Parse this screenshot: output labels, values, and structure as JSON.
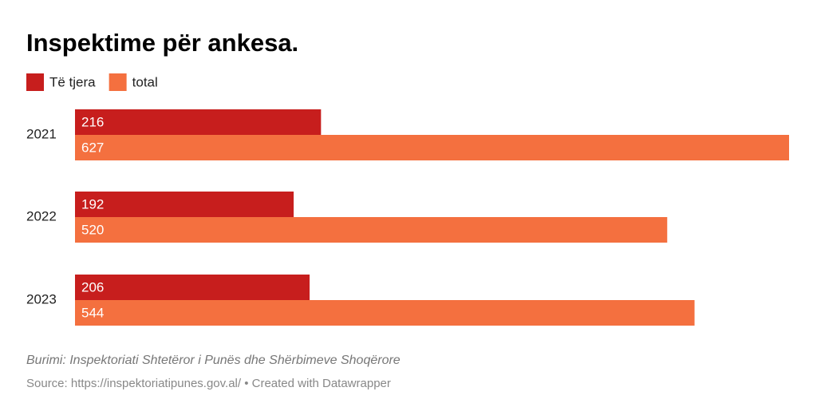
{
  "chart_data": {
    "type": "bar",
    "orientation": "horizontal",
    "title": "Inspektime për ankesa.",
    "categories": [
      "2021",
      "2022",
      "2023"
    ],
    "series": [
      {
        "name": "Të tjera",
        "color": "#c71e1d",
        "values": [
          216,
          192,
          206
        ]
      },
      {
        "name": "total",
        "color": "#f4703f",
        "values": [
          627,
          520,
          544
        ]
      }
    ],
    "notes": "Burimi: Inspektoriati Shtetëror i Punës dhe Shërbimeve Shoqërore",
    "source": "Source: https://inspektoriatipunes.gov.al/ • Created with Datawrapper"
  }
}
